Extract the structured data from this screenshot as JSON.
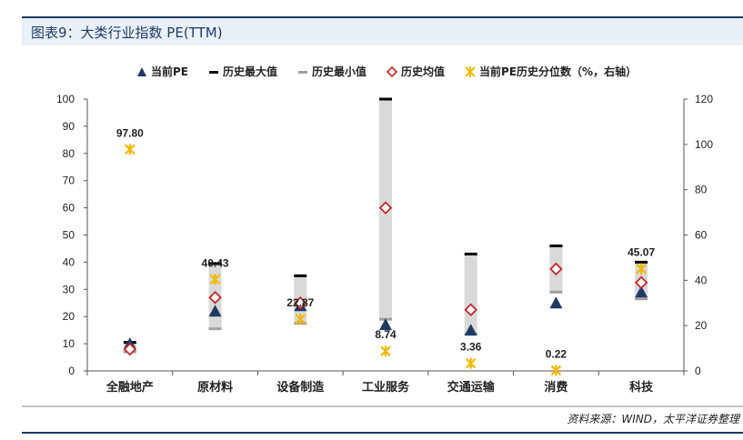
{
  "header": {
    "title": "图表9：大类行业指数 PE(TTM)"
  },
  "legend": [
    {
      "label": "当前PE",
      "icon": "triangle",
      "color": "#1f3b63"
    },
    {
      "label": "历史最大值",
      "icon": "dash",
      "color": "#000000"
    },
    {
      "label": "历史最小值",
      "icon": "dash",
      "color": "#a0a0a0"
    },
    {
      "label": "历史均值",
      "icon": "diamond",
      "color": "#c0282a"
    },
    {
      "label": "当前PE历史分位数（%，右轴）",
      "icon": "star",
      "color": "#f2b800"
    }
  ],
  "source": "资料来源：WIND，太平洋证券整理",
  "chart_data": {
    "type": "range-bar",
    "categories": [
      "全融地产",
      "原材料",
      "设备制造",
      "工业服务",
      "交通运输",
      "消费",
      "科技"
    ],
    "left_axis": {
      "min": 0,
      "max": 100,
      "ticks": [
        "0",
        "10",
        "20",
        "30",
        "40",
        "50",
        "60",
        "70",
        "80",
        "90",
        "100"
      ]
    },
    "right_axis": {
      "min": 0,
      "max": 120,
      "ticks": [
        "0",
        "20",
        "40",
        "60",
        "80",
        "100",
        "120"
      ]
    },
    "series": [
      {
        "name": "当前PE",
        "axis": "left",
        "values": [
          10,
          22,
          24,
          17,
          15,
          25,
          29
        ]
      },
      {
        "name": "历史最大值",
        "axis": "left",
        "values": [
          10.5,
          39.5,
          35,
          100,
          43,
          46,
          40
        ]
      },
      {
        "name": "历史最小值",
        "axis": "left",
        "values": [
          7,
          15.5,
          17.5,
          19,
          13.5,
          29,
          26.5
        ]
      },
      {
        "name": "历史均值",
        "axis": "left",
        "values": [
          8,
          27,
          25,
          60,
          22.5,
          37.5,
          32.5
        ]
      },
      {
        "name": "当前PE历史分位数（%，右轴）",
        "axis": "right",
        "values": [
          97.8,
          40.43,
          22.87,
          8.74,
          3.36,
          0.22,
          45.07
        ]
      }
    ],
    "percentile_labels": [
      "97.80",
      "40.43",
      "22.87",
      "8.74",
      "3.36",
      "0.22",
      "45.07"
    ]
  }
}
